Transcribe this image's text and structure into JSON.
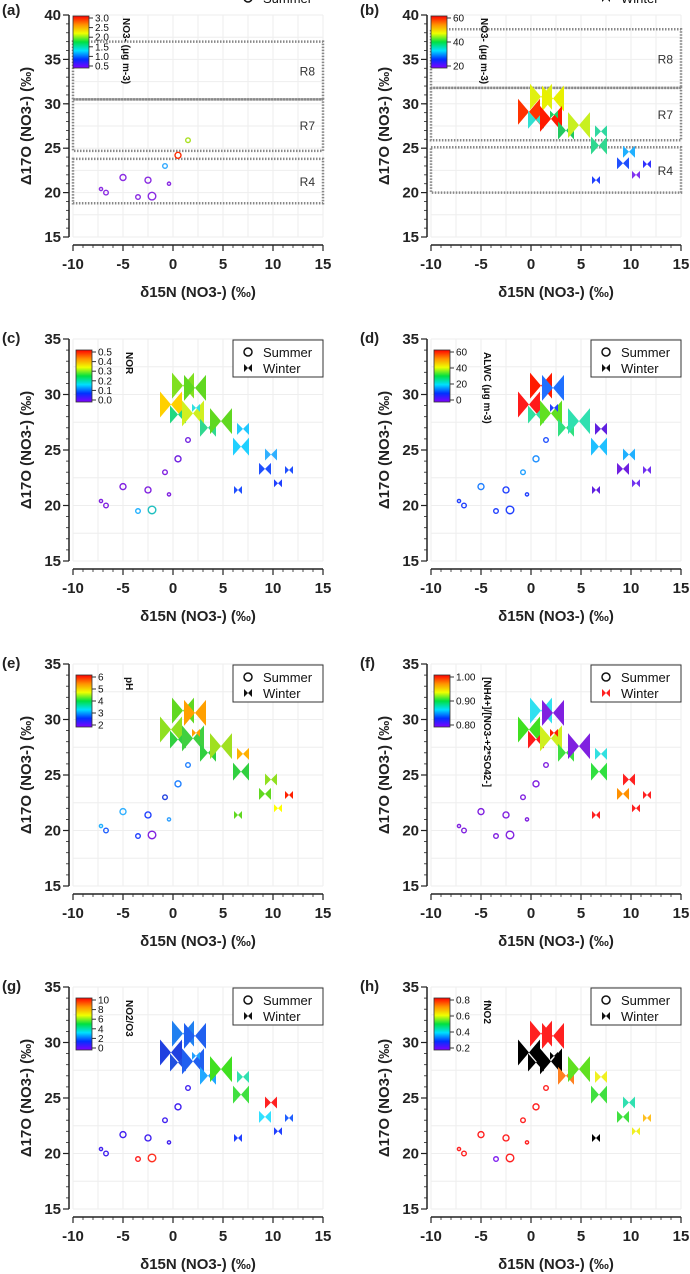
{
  "chart_data": [
    {
      "panel": "(a)",
      "type": "scatter",
      "xlabel": "δ15N (NO3-) (‰)",
      "ylabel": "Δ17O (NO3-) (‰)",
      "xlim": [
        -10,
        15
      ],
      "ylim": [
        15,
        40
      ],
      "xticks": [
        "-10",
        "-5",
        "0",
        "5",
        "10",
        "15"
      ],
      "yticks": [
        "15",
        "20",
        "25",
        "30",
        "35",
        "40"
      ],
      "legend": [
        "Summer"
      ],
      "legend_box": false,
      "colorbar": {
        "label": "NO3- (μg m-3)",
        "ticks": [
          "3.0",
          "2.5",
          "2.0",
          "1.5",
          "1.0",
          "0.5"
        ]
      },
      "regions": [
        {
          "name": "R8",
          "y": [
            30.5,
            37
          ]
        },
        {
          "name": "R7",
          "y": [
            24.7,
            30.5
          ]
        },
        {
          "name": "R4",
          "y": [
            18.8,
            23.8
          ]
        }
      ],
      "show": [
        "summer"
      ],
      "summer_colors": [
        "#8a2be2",
        "#8a2be2",
        "#8a2be2",
        "#8a2be2",
        "#8a2be2",
        "#8a2be2",
        "#8a2be2",
        "#2fa8ff",
        "#ff2a00",
        "#a8e020"
      ]
    },
    {
      "panel": "(b)",
      "type": "scatter",
      "xlabel": "δ15N (NO3-) (‰)",
      "ylabel": "Δ17O (NO3-) (‰)",
      "xlim": [
        -10,
        15
      ],
      "ylim": [
        15,
        40
      ],
      "xticks": [
        "-10",
        "-5",
        "0",
        "5",
        "10",
        "15"
      ],
      "yticks": [
        "15",
        "20",
        "25",
        "30",
        "35",
        "40"
      ],
      "legend": [
        "Winter"
      ],
      "legend_box": false,
      "colorbar": {
        "label": "NO3- (μg m-3)",
        "ticks": [
          "60",
          "40",
          "20"
        ]
      },
      "regions": [
        {
          "name": "R8",
          "y": [
            31.8,
            38.4
          ]
        },
        {
          "name": "R7",
          "y": [
            25.9,
            31.8
          ]
        },
        {
          "name": "R4",
          "y": [
            20,
            25.1
          ]
        }
      ],
      "show": [
        "winter"
      ],
      "winter_colors": [
        "#ff3300",
        "#30e0d0",
        "#e0f010",
        "#e8f000",
        "#ff1a00",
        "#20d060",
        "#20c860",
        "#c8f020",
        "#30d890",
        "#30d8a0",
        "#20b0ff",
        "#2050ff",
        "#3030ff",
        "#8030f0",
        "#2040ff"
      ]
    },
    {
      "panel": "(c)",
      "type": "scatter",
      "xlabel": "δ15N (NO3-) (‰)",
      "ylabel": "Δ17O (NO3-) (‰)",
      "xlim": [
        -10,
        15
      ],
      "ylim": [
        15,
        35
      ],
      "xticks": [
        "-10",
        "-5",
        "0",
        "5",
        "10",
        "15"
      ],
      "yticks": [
        "15",
        "20",
        "25",
        "30",
        "35"
      ],
      "legend": [
        "Summer",
        "Winter"
      ],
      "legend_box": true,
      "colorbar": {
        "label": "NOR",
        "ticks": [
          "0.5",
          "0.4",
          "0.3",
          "0.2",
          "0.1",
          "0.0"
        ]
      },
      "show": [
        "summer",
        "winter"
      ],
      "summer_colors": [
        "#8020e0",
        "#8020e0",
        "#8020e0",
        "#20b0ff",
        "#8020e0",
        "#20c0c0",
        "#8020e0",
        "#8020e0",
        "#7020e0",
        "#7020e0"
      ],
      "winter_colors": [
        "#ffd000",
        "#20d880",
        "#80e020",
        "#60d820",
        "#d0f020",
        "#30e0e0",
        "#30d890",
        "#60d820",
        "#20d0ff",
        "#20c8ff",
        "#30b0ff",
        "#2050ff",
        "#2050ff",
        "#2040ff",
        "#2050ff"
      ]
    },
    {
      "panel": "(d)",
      "type": "scatter",
      "xlabel": "δ15N (NO3-) (‰)",
      "ylabel": "Δ17O (NO3-) (‰)",
      "xlim": [
        -10,
        15
      ],
      "ylim": [
        15,
        35
      ],
      "xticks": [
        "-10",
        "-5",
        "0",
        "5",
        "10",
        "15"
      ],
      "yticks": [
        "15",
        "20",
        "25",
        "30",
        "35"
      ],
      "legend": [
        "Summer",
        "Winter"
      ],
      "legend_box": true,
      "colorbar": {
        "label": "ALWC (μg m-3)",
        "ticks": [
          "60",
          "40",
          "20",
          "0"
        ]
      },
      "show": [
        "summer",
        "winter"
      ],
      "summer_colors": [
        "#2040ff",
        "#2040ff",
        "#2080ff",
        "#2040ff",
        "#2040ff",
        "#2040ff",
        "#2040ff",
        "#20a0ff",
        "#2090ff",
        "#2050ff"
      ],
      "winter_colors": [
        "#ff1a1a",
        "#30e0a0",
        "#ff1a00",
        "#2070ff",
        "#60e020",
        "#2040ff",
        "#30e080",
        "#30e0b0",
        "#20c0ff",
        "#6020e0",
        "#20b0ff",
        "#7020e0",
        "#7030f0",
        "#7030f0",
        "#6020e0"
      ]
    },
    {
      "panel": "(e)",
      "type": "scatter",
      "xlabel": "δ15N (NO3-) (‰)",
      "ylabel": "Δ17O (NO3-) (‰)",
      "xlim": [
        -10,
        15
      ],
      "ylim": [
        15,
        35
      ],
      "xticks": [
        "-10",
        "-5",
        "0",
        "5",
        "10",
        "15"
      ],
      "yticks": [
        "15",
        "20",
        "25",
        "30",
        "35"
      ],
      "legend": [
        "Summer",
        "Winter"
      ],
      "legend_box": true,
      "colorbar": {
        "label": "pH",
        "ticks": [
          "6",
          "5",
          "4",
          "3",
          "2"
        ]
      },
      "show": [
        "summer",
        "winter"
      ],
      "summer_colors": [
        "#20b0ff",
        "#2060ff",
        "#30b0ff",
        "#2040ff",
        "#2040ff",
        "#8020e0",
        "#30a0ff",
        "#2040e0",
        "#2080ff",
        "#2080ff"
      ],
      "winter_colors": [
        "#90e020",
        "#30d040",
        "#60d820",
        "#ffa000",
        "#40d040",
        "#ffa000",
        "#30d040",
        "#a0e020",
        "#30d040",
        "#ffb000",
        "#90e020",
        "#60d820",
        "#ff2000",
        "#ffff00",
        "#60d820"
      ]
    },
    {
      "panel": "(f)",
      "type": "scatter",
      "xlabel": "δ15N (NO3-) (‰)",
      "ylabel": "Δ17O (NO3-) (‰)",
      "xlim": [
        -10,
        15
      ],
      "ylim": [
        15,
        35
      ],
      "xticks": [
        "-10",
        "-5",
        "0",
        "5",
        "10",
        "15"
      ],
      "yticks": [
        "15",
        "20",
        "25",
        "30",
        "35"
      ],
      "legend": [
        "Summer",
        "Winter"
      ],
      "legend_box": true,
      "legend_winter_color": "#ff2020",
      "colorbar": {
        "label": "[NH4+]/[NO3-+2*SO42-]",
        "ticks": [
          "1.00",
          "0.90",
          "0.80"
        ]
      },
      "show": [
        "summer",
        "winter"
      ],
      "summer_colors": [
        "#8020e0",
        "#8020e0",
        "#8020e0",
        "#8020e0",
        "#8020e0",
        "#8020e0",
        "#8020e0",
        "#8020e0",
        "#8020e0",
        "#8020e0"
      ],
      "winter_colors": [
        "#40e020",
        "#ff1a1a",
        "#30e0f0",
        "#8020e0",
        "#d0f020",
        "#ff2000",
        "#40e040",
        "#8020e0",
        "#30e040",
        "#30e0e0",
        "#ff2020",
        "#ff9000",
        "#ff2020",
        "#ff2020",
        "#ff2020"
      ]
    },
    {
      "panel": "(g)",
      "type": "scatter",
      "xlabel": "δ15N (NO3-) (‰)",
      "ylabel": "Δ17O (NO3-) (‰)",
      "xlim": [
        -10,
        15
      ],
      "ylim": [
        15,
        35
      ],
      "xticks": [
        "-10",
        "-5",
        "0",
        "5",
        "10",
        "15"
      ],
      "yticks": [
        "15",
        "20",
        "25",
        "30",
        "35"
      ],
      "legend": [
        "Summer",
        "Winter"
      ],
      "legend_box": true,
      "colorbar": {
        "label": "NO2/O3",
        "ticks": [
          "10",
          "8",
          "6",
          "4",
          "2",
          "0"
        ]
      },
      "show": [
        "summer",
        "winter"
      ],
      "summer_colors": [
        "#4020f0",
        "#4020f0",
        "#4020f0",
        "#ff2020",
        "#4020f0",
        "#ff3020",
        "#4020f0",
        "#4020f0",
        "#4020f0",
        "#4020f0"
      ],
      "winter_colors": [
        "#2040e0",
        "#2050e0",
        "#2080f0",
        "#2060f0",
        "#2060f0",
        "#20a0ff",
        "#20a8ff",
        "#40e020",
        "#40e040",
        "#30e0b0",
        "#ff2020",
        "#30e0ff",
        "#2060ff",
        "#2040ff",
        "#2040ff"
      ]
    },
    {
      "panel": "(h)",
      "type": "scatter",
      "xlabel": "δ15N (NO3-) (‰)",
      "ylabel": "Δ17O (NO3-) (‰)",
      "xlim": [
        -10,
        15
      ],
      "ylim": [
        15,
        35
      ],
      "xticks": [
        "-10",
        "-5",
        "0",
        "5",
        "10",
        "15"
      ],
      "yticks": [
        "15",
        "20",
        "25",
        "30",
        "35"
      ],
      "legend": [
        "Summer",
        "Winter"
      ],
      "legend_box": true,
      "colorbar": {
        "label": "fNO2",
        "ticks": [
          "0.8",
          "0.6",
          "0.4",
          "0.2"
        ]
      },
      "show": [
        "summer",
        "winter"
      ],
      "summer_colors": [
        "#ff2020",
        "#ff2020",
        "#ff2020",
        "#8020f0",
        "#ff2020",
        "#ff2020",
        "#ff2020",
        "#ff2020",
        "#ff2020",
        "#ff2020"
      ],
      "winter_colors": [
        "#000000",
        "#000000",
        "#ff2020",
        "#ff2020",
        "#000000",
        "#000000",
        "#ff8020",
        "#60e020",
        "#40e040",
        "#f0f020",
        "#30e0b0",
        "#40e040",
        "#ffc020",
        "#f0f020",
        "#000000"
      ]
    }
  ],
  "summer_points": [
    {
      "x": -7.2,
      "y": 20.4,
      "size": 1
    },
    {
      "x": -6.7,
      "y": 20.0,
      "size": 2
    },
    {
      "x": -5.0,
      "y": 21.7,
      "size": 3
    },
    {
      "x": -3.5,
      "y": 19.5,
      "size": 2
    },
    {
      "x": -2.5,
      "y": 21.4,
      "size": 3
    },
    {
      "x": -2.1,
      "y": 19.6,
      "size": 4
    },
    {
      "x": -0.4,
      "y": 21.0,
      "size": 1
    },
    {
      "x": -0.8,
      "y": 23.0,
      "size": 2
    },
    {
      "x": 0.5,
      "y": 24.2,
      "size": 3
    },
    {
      "x": 1.5,
      "y": 25.9,
      "size": 2
    }
  ],
  "winter_points": [
    {
      "x": -0.2,
      "y": 29.1,
      "size": 5
    },
    {
      "x": 0.5,
      "y": 28.2,
      "size": 4
    },
    {
      "x": 1.0,
      "y": 30.8,
      "size": 5
    },
    {
      "x": 2.2,
      "y": 30.6,
      "size": 5
    },
    {
      "x": 2.0,
      "y": 28.3,
      "size": 5
    },
    {
      "x": 2.3,
      "y": 28.8,
      "size": 2
    },
    {
      "x": 3.5,
      "y": 27.0,
      "size": 4
    },
    {
      "x": 4.8,
      "y": 27.6,
      "size": 5
    },
    {
      "x": 6.8,
      "y": 25.3,
      "size": 4
    },
    {
      "x": 7.0,
      "y": 26.9,
      "size": 3
    },
    {
      "x": 9.8,
      "y": 24.6,
      "size": 3
    },
    {
      "x": 9.2,
      "y": 23.3,
      "size": 3
    },
    {
      "x": 11.6,
      "y": 23.2,
      "size": 2
    },
    {
      "x": 10.5,
      "y": 22.0,
      "size": 2
    },
    {
      "x": 6.5,
      "y": 21.4,
      "size": 2
    }
  ]
}
